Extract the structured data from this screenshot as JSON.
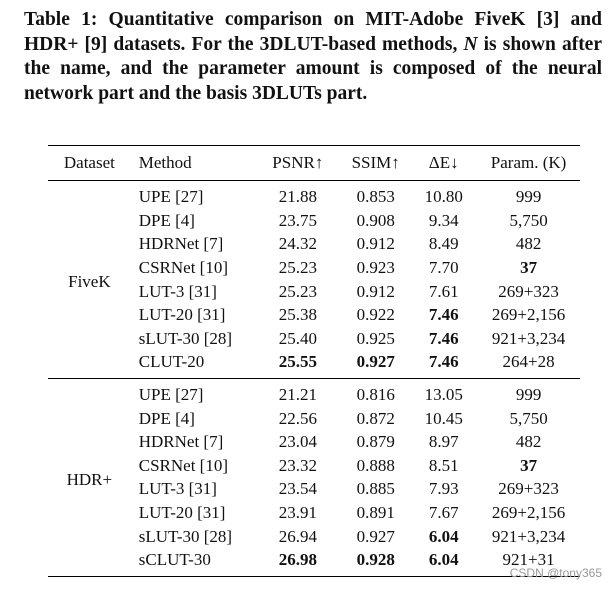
{
  "caption": [
    "Table 1: Quantitative comparison on MIT-Adobe FiveK [3] and HDR+ [9] datasets. For the 3DLUT-based methods, ",
    "N",
    " is shown after the name, and the parameter amount is composed of the neural network part and the basis 3DLUTs part."
  ],
  "table": {
    "header": [
      "Dataset",
      "Method",
      "PSNR↑",
      "SSIM↑",
      "ΔE↓",
      "Param. (K)"
    ],
    "groups": [
      {
        "dataset": "FiveK",
        "rows": [
          {
            "cells": [
              "UPE [27]",
              "21.88",
              "0.853",
              "10.80",
              "999"
            ],
            "bold": []
          },
          {
            "cells": [
              "DPE [4]",
              "23.75",
              "0.908",
              "9.34",
              "5,750"
            ],
            "bold": []
          },
          {
            "cells": [
              "HDRNet [7]",
              "24.32",
              "0.912",
              "8.49",
              "482"
            ],
            "bold": []
          },
          {
            "cells": [
              "CSRNet [10]",
              "25.23",
              "0.923",
              "7.70",
              "37"
            ],
            "bold": [
              4
            ]
          },
          {
            "cells": [
              "LUT-3 [31]",
              "25.23",
              "0.912",
              "7.61",
              "269+323"
            ],
            "bold": []
          },
          {
            "cells": [
              "LUT-20 [31]",
              "25.38",
              "0.922",
              "7.46",
              "269+2,156"
            ],
            "bold": [
              3
            ]
          },
          {
            "cells": [
              "sLUT-30 [28]",
              "25.40",
              "0.925",
              "7.46",
              "921+3,234"
            ],
            "bold": [
              3
            ]
          },
          {
            "cells": [
              "CLUT-20",
              "25.55",
              "0.927",
              "7.46",
              "264+28"
            ],
            "bold": [
              1,
              2,
              3
            ]
          }
        ]
      },
      {
        "dataset": "HDR+",
        "rows": [
          {
            "cells": [
              "UPE [27]",
              "21.21",
              "0.816",
              "13.05",
              "999"
            ],
            "bold": []
          },
          {
            "cells": [
              "DPE [4]",
              "22.56",
              "0.872",
              "10.45",
              "5,750"
            ],
            "bold": []
          },
          {
            "cells": [
              "HDRNet [7]",
              "23.04",
              "0.879",
              "8.97",
              "482"
            ],
            "bold": []
          },
          {
            "cells": [
              "CSRNet [10]",
              "23.32",
              "0.888",
              "8.51",
              "37"
            ],
            "bold": [
              4
            ]
          },
          {
            "cells": [
              "LUT-3 [31]",
              "23.54",
              "0.885",
              "7.93",
              "269+323"
            ],
            "bold": []
          },
          {
            "cells": [
              "LUT-20 [31]",
              "23.91",
              "0.891",
              "7.67",
              "269+2,156"
            ],
            "bold": []
          },
          {
            "cells": [
              "sLUT-30 [28]",
              "26.94",
              "0.927",
              "6.04",
              "921+3,234"
            ],
            "bold": [
              3
            ]
          },
          {
            "cells": [
              "sCLUT-30",
              "26.98",
              "0.928",
              "6.04",
              "921+31"
            ],
            "bold": [
              1,
              2,
              3
            ]
          }
        ]
      }
    ]
  },
  "watermark": "CSDN @tony365"
}
